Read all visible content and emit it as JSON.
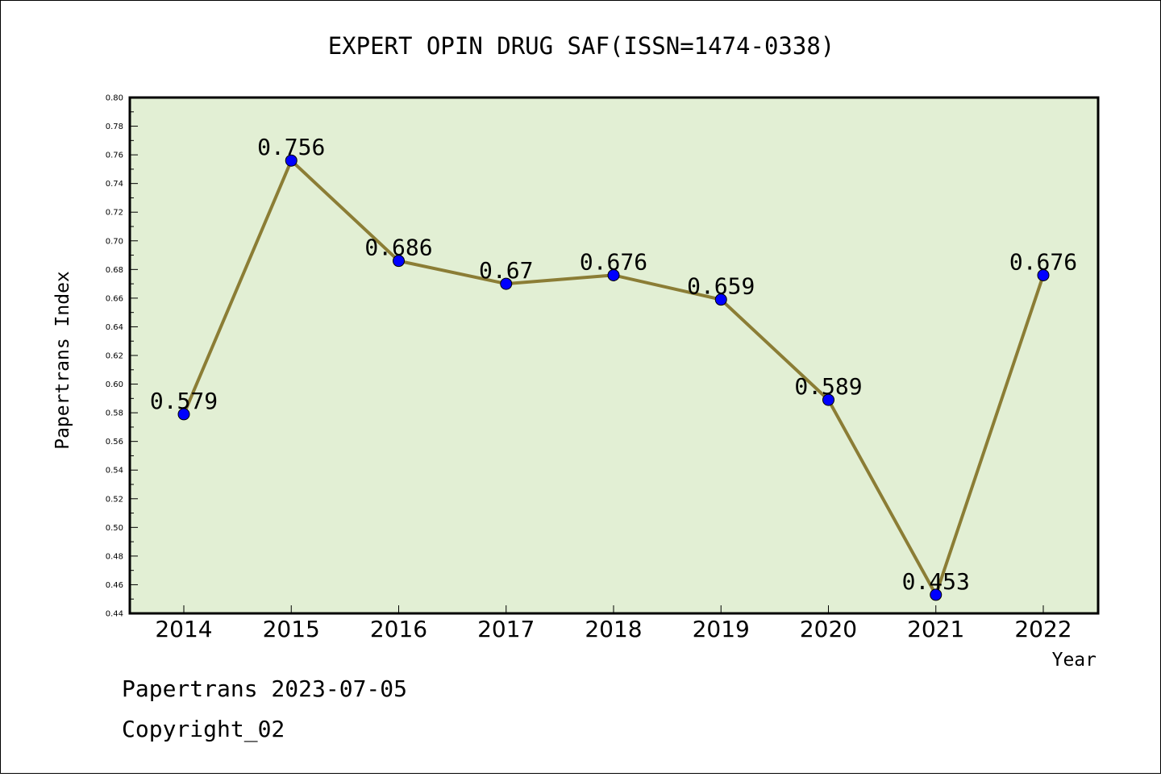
{
  "chart_data": {
    "type": "line",
    "title": "EXPERT OPIN DRUG SAF(ISSN=1474-0338)",
    "xlabel": "Year",
    "ylabel": "Papertrans Index",
    "x": [
      "2014",
      "2015",
      "2016",
      "2017",
      "2018",
      "2019",
      "2020",
      "2021",
      "2022"
    ],
    "values": [
      0.579,
      0.756,
      0.686,
      0.67,
      0.676,
      0.659,
      0.589,
      0.453,
      0.676
    ],
    "labels": [
      "0.579",
      "0.756",
      "0.686",
      "0.67",
      "0.676",
      "0.659",
      "0.589",
      "0.453",
      "0.676"
    ],
    "ylim": [
      0.44,
      0.8
    ],
    "yticks": [
      "0.44",
      "0.46",
      "0.48",
      "0.50",
      "0.52",
      "0.54",
      "0.56",
      "0.58",
      "0.60",
      "0.62",
      "0.64",
      "0.66",
      "0.68",
      "0.70",
      "0.72",
      "0.74",
      "0.76",
      "0.78",
      "0.80"
    ],
    "grid": false,
    "colors": {
      "plot_bg": "#e2efd4",
      "line": "#8b7d35",
      "marker": "#0000ff"
    }
  },
  "footer": {
    "line1": "Papertrans 2023-07-05",
    "line2": "Copyright_02"
  }
}
